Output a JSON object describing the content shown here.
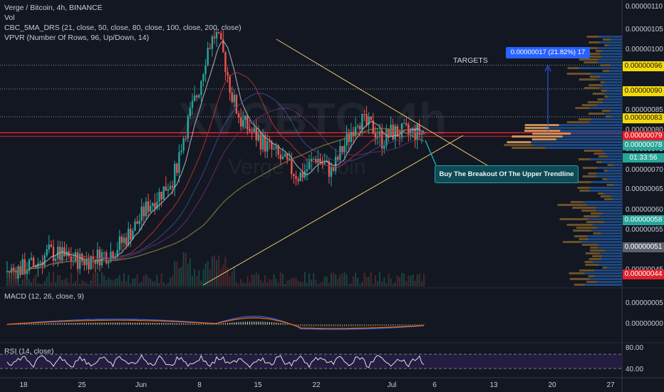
{
  "legend": {
    "symbol": "Verge / Bitcoin, 4h, BINANCE",
    "vol": "Vol",
    "ma": "CBC_5MA_DRS (21, close, 50, close, 80, close, 100, close, 200, close)",
    "vpvr": "VPVR (Number Of Rows, 96, Up/Down, 14)"
  },
  "watermark": {
    "symbol": "XVGBTC, 4h",
    "name": "Verge / Bitcoin"
  },
  "annotations": {
    "targets": "TARGETS",
    "measure": "0.00000017 (21.82%) 17",
    "callout": "Buy The Breakout Of The Upper Trendline"
  },
  "macd": {
    "label": "MACD (12, 26, close, 9)",
    "ticks": [
      "0.00000005",
      "0.00000000"
    ]
  },
  "rsi": {
    "label": "RSI (14, close)",
    "ticks": [
      "80.00",
      "40.00"
    ]
  },
  "price_axis": {
    "ticks": [
      "0.00000110",
      "0.00000105",
      "0.00000100",
      "0.00000090",
      "0.00000085",
      "0.00000080",
      "0.00000075",
      "0.00000070",
      "0.00000065",
      "0.00000060",
      "0.00000055",
      "0.00000050",
      "0.00000045"
    ],
    "tags": [
      {
        "text": "0.00000096",
        "color": "#f5d90a",
        "text_color": "#131722"
      },
      {
        "text": "0.00000090",
        "color": "#f5d90a",
        "text_color": "#131722"
      },
      {
        "text": "0.00000083",
        "color": "#f5d90a",
        "text_color": "#131722"
      },
      {
        "text": "0.00000079",
        "color": "#e0212b",
        "text_color": "#ffffff"
      },
      {
        "text": "0.00000078",
        "color": "#26a69a",
        "text_color": "#ffffff"
      },
      {
        "text": "0.00000058",
        "color": "#26a69a",
        "text_color": "#ffffff"
      },
      {
        "text": "0.00000051",
        "color": "#5d606b",
        "text_color": "#ffffff"
      },
      {
        "text": "0.00000044",
        "color": "#e0212b",
        "text_color": "#ffffff"
      }
    ],
    "countdown": "01:33:56"
  },
  "time_axis": [
    "18",
    "25",
    "Jun",
    "8",
    "15",
    "22",
    "Jul",
    "6",
    "13",
    "20",
    "27"
  ],
  "chart_data": {
    "type": "candlestick",
    "title": "Verge / Bitcoin, 4h, BINANCE",
    "price_range": [
      4e-07,
      1.12e-06
    ],
    "close_path": [
      [
        0.0,
        4.4e-07
      ],
      [
        0.04,
        4.5e-07
      ],
      [
        0.07,
        4.6e-07
      ],
      [
        0.1,
        4.9e-07
      ],
      [
        0.13,
        4.8e-07
      ],
      [
        0.16,
        4.7e-07
      ],
      [
        0.19,
        4.7e-07
      ],
      [
        0.22,
        4.8e-07
      ],
      [
        0.25,
        4.9e-07
      ],
      [
        0.28,
        5.2e-07
      ],
      [
        0.31,
        5.6e-07
      ],
      [
        0.34,
        6.1e-07
      ],
      [
        0.37,
        6.4e-07
      ],
      [
        0.4,
        6.8e-07
      ],
      [
        0.42,
        7.7e-07
      ],
      [
        0.44,
        8.4e-07
      ],
      [
        0.46,
        9e-07
      ],
      [
        0.48,
        1e-06
      ],
      [
        0.5,
        1.04e-06
      ],
      [
        0.52,
        9.8e-07
      ],
      [
        0.54,
        8.8e-07
      ],
      [
        0.56,
        8.2e-07
      ],
      [
        0.58,
        8e-07
      ],
      [
        0.6,
        7.8e-07
      ],
      [
        0.62,
        7.6e-07
      ],
      [
        0.64,
        7.4e-07
      ],
      [
        0.66,
        7.2e-07
      ],
      [
        0.68,
        7e-07
      ],
      [
        0.7,
        6.8e-07
      ],
      [
        0.72,
        7e-07
      ],
      [
        0.74,
        7.3e-07
      ],
      [
        0.76,
        7.1e-07
      ],
      [
        0.78,
        6.9e-07
      ],
      [
        0.8,
        7.4e-07
      ],
      [
        0.82,
        7.8e-07
      ],
      [
        0.84,
        8.3e-07
      ],
      [
        0.86,
        8.1e-07
      ],
      [
        0.88,
        8e-07
      ],
      [
        0.9,
        7.7e-07
      ],
      [
        0.92,
        7.9e-07
      ]
    ],
    "levels": {
      "current": 7.9e-07,
      "targets": [
        8.3e-07,
        9e-07,
        9.6e-07
      ]
    }
  }
}
